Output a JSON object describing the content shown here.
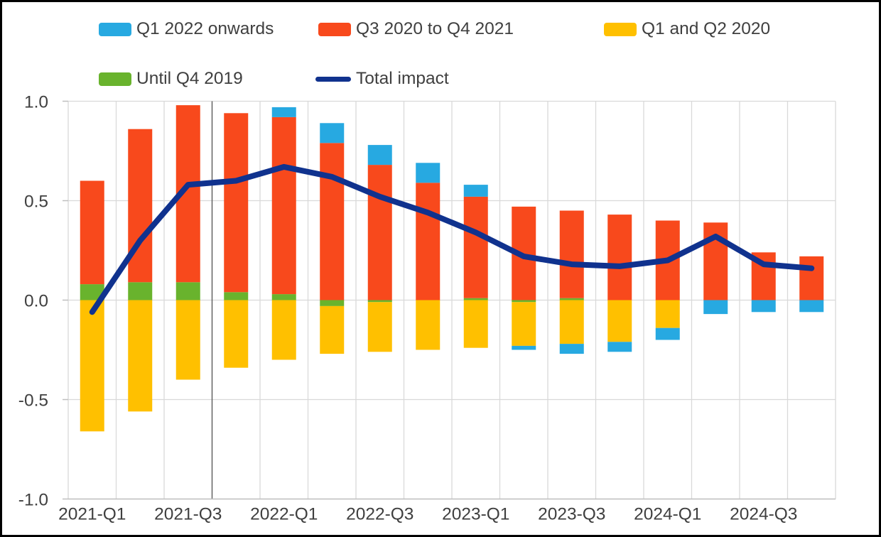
{
  "chart_data": {
    "type": "bar",
    "subtype": "stacked-bars-with-total-line",
    "title": "",
    "xlabel": "",
    "ylabel": "",
    "ylim": [
      -1.0,
      1.0
    ],
    "grid": true,
    "legend_position": "top",
    "categories": [
      "2021-Q1",
      "2021-Q2",
      "2021-Q3",
      "2021-Q4",
      "2022-Q1",
      "2022-Q2",
      "2022-Q3",
      "2022-Q4",
      "2023-Q1",
      "2023-Q2",
      "2023-Q3",
      "2023-Q4",
      "2024-Q1",
      "2024-Q2",
      "2024-Q3",
      "2024-Q4"
    ],
    "xtick_labels": [
      "2021-Q1",
      "2021-Q3",
      "2022-Q1",
      "2022-Q3",
      "2023-Q1",
      "2023-Q3",
      "2024-Q1",
      "2024-Q3"
    ],
    "xtick_indices": [
      0,
      2,
      4,
      6,
      8,
      10,
      12,
      14
    ],
    "yticks": [
      1.0,
      0.5,
      0.0,
      -0.5,
      -1.0
    ],
    "ytick_labels": [
      "1.0",
      "0.5",
      "0.0",
      "-0.5",
      "-1.0"
    ],
    "separator_after_category": "2021-Q3",
    "separator_boundary_index": 3,
    "series": [
      {
        "name": "Until Q4 2019",
        "key": "until-q4-2019",
        "color_key": "green",
        "values": [
          0.08,
          0.09,
          0.09,
          0.04,
          0.03,
          -0.03,
          -0.01,
          0.0,
          0.01,
          -0.01,
          0.01,
          0.0,
          0.0,
          0.0,
          0.0,
          0.0
        ]
      },
      {
        "name": "Q1 and Q2 2020",
        "key": "q1-q2-2020",
        "color_key": "yellow",
        "values": [
          -0.66,
          -0.56,
          -0.4,
          -0.34,
          -0.3,
          -0.24,
          -0.25,
          -0.25,
          -0.24,
          -0.22,
          -0.22,
          -0.21,
          -0.14,
          0.0,
          0.0,
          0.0
        ]
      },
      {
        "name": "Q3 2020 to Q4 2021",
        "key": "q3-2020-q4-2021",
        "color_key": "orange",
        "values": [
          0.52,
          0.77,
          0.89,
          0.9,
          0.89,
          0.79,
          0.68,
          0.59,
          0.51,
          0.47,
          0.44,
          0.43,
          0.4,
          0.39,
          0.24,
          0.22
        ]
      },
      {
        "name": "Q1 2022 onwards",
        "key": "q1-2022-onwards",
        "color_key": "cyan",
        "values": [
          0.0,
          0.0,
          0.0,
          0.0,
          0.05,
          0.1,
          0.1,
          0.1,
          0.06,
          -0.02,
          -0.05,
          -0.05,
          -0.06,
          -0.07,
          -0.06,
          -0.06
        ]
      }
    ],
    "line_series": {
      "name": "Total impact",
      "color_key": "navy",
      "values": [
        -0.06,
        0.3,
        0.58,
        0.6,
        0.67,
        0.62,
        0.52,
        0.44,
        0.34,
        0.22,
        0.18,
        0.17,
        0.2,
        0.32,
        0.18,
        0.16
      ]
    },
    "legend": [
      {
        "label": "Q1 2022 onwards",
        "color_key": "cyan",
        "marker": "box"
      },
      {
        "label": "Q3 2020 to Q4 2021",
        "color_key": "orange",
        "marker": "box"
      },
      {
        "label": "Q1 and Q2 2020",
        "color_key": "yellow",
        "marker": "box"
      },
      {
        "label": "Until Q4 2019",
        "color_key": "green",
        "marker": "box"
      },
      {
        "label": "Total impact",
        "color_key": "navy",
        "marker": "line"
      }
    ],
    "colors": {
      "cyan": "#27A9E1",
      "orange": "#F8491C",
      "yellow": "#FFC000",
      "green": "#69B32D",
      "navy": "#10328E",
      "grid": "#D9D9D9",
      "separator": "#5A5A5A",
      "axis_line": "#BFBFBF",
      "text": "#3F3F3F"
    }
  }
}
